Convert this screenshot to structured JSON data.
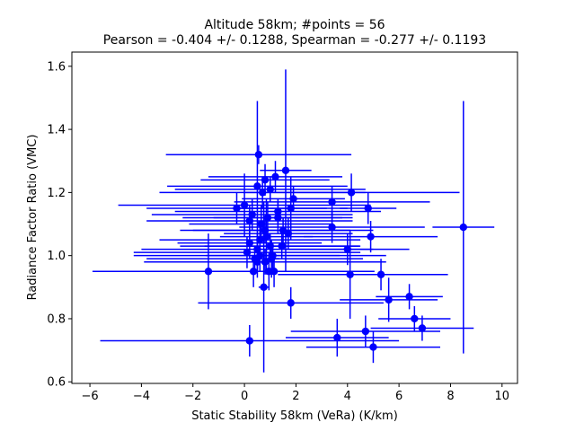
{
  "chart_data": {
    "type": "scatter",
    "title_line1": "Altitude 58km;  #points = 56",
    "title_line2": "Pearson = -0.404 +/-  0.1288, Spearman = -0.277 +/-  0.1193",
    "xlabel": "Static Stability 58km (VeRa) (K/km)",
    "ylabel": "Radiance Factor Ratio (VMC)",
    "xlim": [
      -6.7,
      10.6
    ],
    "ylim": [
      0.595,
      1.645
    ],
    "xticks": [
      -6,
      -4,
      -2,
      0,
      2,
      4,
      6,
      8,
      10
    ],
    "xtick_labels": [
      "−6",
      "−4",
      "−2",
      "0",
      "2",
      "4",
      "6",
      "8",
      "10"
    ],
    "yticks": [
      0.6,
      0.8,
      1.0,
      1.2,
      1.4,
      1.6
    ],
    "ytick_labels": [
      "0.6",
      "0.8",
      "1.0",
      "1.2",
      "1.4",
      "1.6"
    ],
    "grid": false,
    "color": "#0000ff",
    "points": [
      {
        "x": 0.55,
        "y": 1.32,
        "xerr": 3.6,
        "yerr": 0.03
      },
      {
        "x": 1.6,
        "y": 1.27,
        "xerr": 1.0,
        "yerr": 0.32
      },
      {
        "x": 0.8,
        "y": 1.24,
        "xerr": 2.5,
        "yerr": 0.05
      },
      {
        "x": 0.5,
        "y": 1.22,
        "xerr": 3.5,
        "yerr": 0.27
      },
      {
        "x": 1.0,
        "y": 1.21,
        "xerr": 3.7,
        "yerr": 0.04
      },
      {
        "x": 4.15,
        "y": 1.2,
        "xerr": 4.2,
        "yerr": 0.06
      },
      {
        "x": 0.7,
        "y": 1.2,
        "xerr": 4.0,
        "yerr": 0.05
      },
      {
        "x": 3.4,
        "y": 1.17,
        "xerr": 3.8,
        "yerr": 0.05
      },
      {
        "x": 0.0,
        "y": 1.16,
        "xerr": 4.9,
        "yerr": 0.1
      },
      {
        "x": 4.8,
        "y": 1.15,
        "xerr": 1.1,
        "yerr": 0.05
      },
      {
        "x": 1.8,
        "y": 1.15,
        "xerr": 2.2,
        "yerr": 0.1
      },
      {
        "x": -0.3,
        "y": 1.15,
        "xerr": 3.5,
        "yerr": 0.05
      },
      {
        "x": 0.3,
        "y": 1.13,
        "xerr": 3.9,
        "yerr": 0.05
      },
      {
        "x": 1.3,
        "y": 1.12,
        "xerr": 2.5,
        "yerr": 0.05
      },
      {
        "x": 0.9,
        "y": 1.12,
        "xerr": 3.3,
        "yerr": 0.05
      },
      {
        "x": 0.2,
        "y": 1.11,
        "xerr": 4.0,
        "yerr": 0.05
      },
      {
        "x": 3.4,
        "y": 1.09,
        "xerr": 3.6,
        "yerr": 0.05
      },
      {
        "x": 8.5,
        "y": 1.09,
        "xerr": 1.2,
        "yerr": 0.4
      },
      {
        "x": 1.5,
        "y": 1.08,
        "xerr": 3.5,
        "yerr": 0.04
      },
      {
        "x": 0.8,
        "y": 1.08,
        "xerr": 3.3,
        "yerr": 0.04
      },
      {
        "x": 1.7,
        "y": 1.07,
        "xerr": 2.5,
        "yerr": 0.05
      },
      {
        "x": 4.9,
        "y": 1.06,
        "xerr": 2.6,
        "yerr": 0.05
      },
      {
        "x": 0.6,
        "y": 1.05,
        "xerr": 3.9,
        "yerr": 0.04
      },
      {
        "x": 0.2,
        "y": 1.04,
        "xerr": 2.8,
        "yerr": 0.05
      },
      {
        "x": 1.0,
        "y": 1.03,
        "xerr": 3.5,
        "yerr": 0.04
      },
      {
        "x": 0.5,
        "y": 1.02,
        "xerr": 4.5,
        "yerr": 0.05
      },
      {
        "x": 4.0,
        "y": 1.02,
        "xerr": 2.4,
        "yerr": 0.05
      },
      {
        "x": 0.1,
        "y": 1.01,
        "xerr": 4.4,
        "yerr": 0.05
      },
      {
        "x": 0.6,
        "y": 1.0,
        "xerr": 4.9,
        "yerr": 0.05
      },
      {
        "x": 1.1,
        "y": 1.0,
        "xerr": 2.6,
        "yerr": 0.04
      },
      {
        "x": 0.4,
        "y": 0.99,
        "xerr": 4.2,
        "yerr": 0.04
      },
      {
        "x": 0.8,
        "y": 0.98,
        "xerr": 4.7,
        "yerr": 0.04
      },
      {
        "x": 0.5,
        "y": 0.98,
        "xerr": 2.6,
        "yerr": 0.05
      },
      {
        "x": -1.4,
        "y": 0.95,
        "xerr": 4.5,
        "yerr": 0.12
      },
      {
        "x": 0.35,
        "y": 0.95,
        "xerr": 2.0,
        "yerr": 0.05
      },
      {
        "x": 0.95,
        "y": 0.95,
        "xerr": 1.5,
        "yerr": 0.06
      },
      {
        "x": 1.15,
        "y": 0.95,
        "xerr": 3.9,
        "yerr": 0.05
      },
      {
        "x": 4.1,
        "y": 0.94,
        "xerr": 2.8,
        "yerr": 0.14
      },
      {
        "x": 5.3,
        "y": 0.94,
        "xerr": 2.6,
        "yerr": 0.05
      },
      {
        "x": 6.4,
        "y": 0.87,
        "xerr": 1.3,
        "yerr": 0.04
      },
      {
        "x": 5.6,
        "y": 0.86,
        "xerr": 1.9,
        "yerr": 0.07
      },
      {
        "x": 1.8,
        "y": 0.85,
        "xerr": 3.6,
        "yerr": 0.05
      },
      {
        "x": 6.6,
        "y": 0.8,
        "xerr": 1.4,
        "yerr": 0.04
      },
      {
        "x": 6.9,
        "y": 0.77,
        "xerr": 2.0,
        "yerr": 0.04
      },
      {
        "x": 4.7,
        "y": 0.76,
        "xerr": 2.9,
        "yerr": 0.05
      },
      {
        "x": 3.6,
        "y": 0.74,
        "xerr": 2.0,
        "yerr": 0.06
      },
      {
        "x": 0.2,
        "y": 0.73,
        "xerr": 5.8,
        "yerr": 0.05
      },
      {
        "x": 5.0,
        "y": 0.71,
        "xerr": 2.6,
        "yerr": 0.05
      },
      {
        "x": 1.9,
        "y": 1.18,
        "xerr": 2.0,
        "yerr": 0.04
      },
      {
        "x": 1.2,
        "y": 1.25,
        "xerr": 2.6,
        "yerr": 0.05
      },
      {
        "x": 0.65,
        "y": 1.1,
        "xerr": 2.8,
        "yerr": 0.06
      },
      {
        "x": 1.45,
        "y": 1.03,
        "xerr": 3.0,
        "yerr": 0.04
      },
      {
        "x": 0.75,
        "y": 0.9,
        "xerr": 0.2,
        "yerr": 0.27
      },
      {
        "x": 1.3,
        "y": 1.14,
        "xerr": 4.0,
        "yerr": 0.04
      },
      {
        "x": 0.85,
        "y": 1.06,
        "xerr": 1.8,
        "yerr": 0.12
      },
      {
        "x": 1.05,
        "y": 0.99,
        "xerr": 0.3,
        "yerr": 0.06
      }
    ]
  }
}
